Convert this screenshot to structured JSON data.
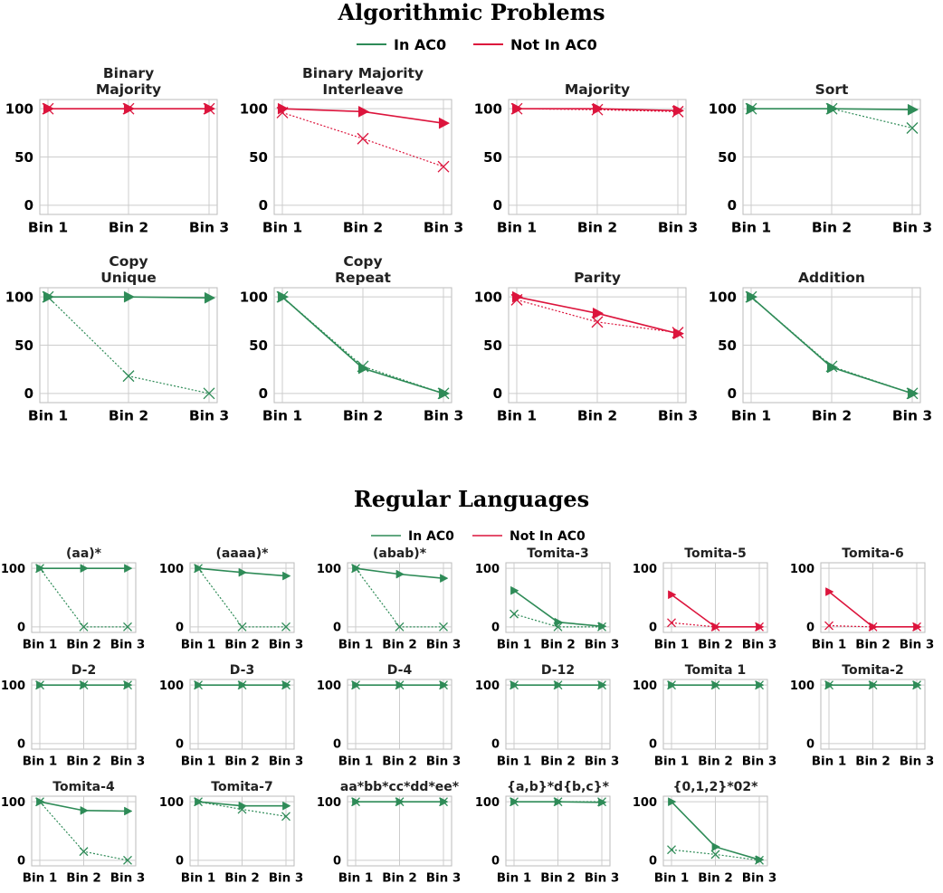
{
  "colors": {
    "in_ac0": "#2e8b57",
    "not_in_ac0": "#dc143c",
    "grid": "#cccccc",
    "axes": "#bbbbbb"
  },
  "sections": [
    {
      "title": "Algorithmic Problems",
      "legend": {
        "in_ac0": "In AC0",
        "not_in_ac0": "Not In AC0"
      },
      "charts": [
        {
          "title": [
            "Binary",
            "Majority"
          ],
          "category": "not_in_ac0",
          "solid": [
            100,
            100,
            100
          ],
          "dotted": [
            100,
            100,
            100
          ]
        },
        {
          "title": [
            "Binary Majority",
            "Interleave"
          ],
          "category": "not_in_ac0",
          "solid": [
            100,
            97,
            85
          ],
          "dotted": [
            96,
            69,
            40
          ]
        },
        {
          "title": [
            "Majority"
          ],
          "category": "not_in_ac0",
          "solid": [
            100,
            100,
            98
          ],
          "dotted": [
            100,
            99,
            97
          ]
        },
        {
          "title": [
            "Sort"
          ],
          "category": "in_ac0",
          "solid": [
            100,
            100,
            99
          ],
          "dotted": [
            100,
            100,
            80
          ]
        },
        {
          "title": [
            "Copy",
            "Unique"
          ],
          "category": "in_ac0",
          "solid": [
            100,
            100,
            99
          ],
          "dotted": [
            100,
            18,
            0
          ]
        },
        {
          "title": [
            "Copy",
            "Repeat"
          ],
          "category": "in_ac0",
          "solid": [
            100,
            26,
            0
          ],
          "dotted": [
            100,
            28,
            0
          ]
        },
        {
          "title": [
            "Parity"
          ],
          "category": "not_in_ac0",
          "solid": [
            100,
            83,
            62
          ],
          "dotted": [
            97,
            74,
            63
          ]
        },
        {
          "title": [
            "Addition"
          ],
          "category": "in_ac0",
          "solid": [
            100,
            27,
            0
          ],
          "dotted": [
            100,
            28,
            0
          ]
        }
      ]
    },
    {
      "title": "Regular Languages",
      "legend": {
        "in_ac0": "In AC0",
        "not_in_ac0": "Not In AC0"
      },
      "charts": [
        {
          "title": [
            "(aa)*"
          ],
          "category": "in_ac0",
          "solid": [
            100,
            100,
            100
          ],
          "dotted": [
            100,
            0,
            0
          ]
        },
        {
          "title": [
            "(aaaa)*"
          ],
          "category": "in_ac0",
          "solid": [
            100,
            93,
            87
          ],
          "dotted": [
            100,
            0,
            0
          ]
        },
        {
          "title": [
            "(abab)*"
          ],
          "category": "in_ac0",
          "solid": [
            100,
            90,
            83
          ],
          "dotted": [
            100,
            0,
            0
          ]
        },
        {
          "title": [
            "Tomita-3"
          ],
          "category": "in_ac0",
          "solid": [
            62,
            8,
            1
          ],
          "dotted": [
            22,
            0,
            0
          ]
        },
        {
          "title": [
            "Tomita-5"
          ],
          "category": "not_in_ac0",
          "solid": [
            55,
            0,
            0
          ],
          "dotted": [
            7,
            0,
            0
          ]
        },
        {
          "title": [
            "Tomita-6"
          ],
          "category": "not_in_ac0",
          "solid": [
            60,
            0,
            0
          ],
          "dotted": [
            2,
            0,
            0
          ]
        },
        {
          "title": [
            "D-2"
          ],
          "category": "in_ac0",
          "solid": [
            100,
            100,
            100
          ],
          "dotted": [
            100,
            100,
            100
          ]
        },
        {
          "title": [
            "D-3"
          ],
          "category": "in_ac0",
          "solid": [
            100,
            100,
            100
          ],
          "dotted": [
            100,
            100,
            100
          ]
        },
        {
          "title": [
            "D-4"
          ],
          "category": "in_ac0",
          "solid": [
            100,
            100,
            100
          ],
          "dotted": [
            100,
            100,
            100
          ]
        },
        {
          "title": [
            "D-12"
          ],
          "category": "in_ac0",
          "solid": [
            100,
            100,
            100
          ],
          "dotted": [
            100,
            100,
            100
          ]
        },
        {
          "title": [
            "Tomita 1"
          ],
          "category": "in_ac0",
          "solid": [
            100,
            100,
            100
          ],
          "dotted": [
            100,
            100,
            100
          ]
        },
        {
          "title": [
            "Tomita-2"
          ],
          "category": "in_ac0",
          "solid": [
            100,
            100,
            100
          ],
          "dotted": [
            100,
            100,
            100
          ]
        },
        {
          "title": [
            "Tomita-4"
          ],
          "category": "in_ac0",
          "solid": [
            100,
            85,
            84
          ],
          "dotted": [
            100,
            15,
            0
          ]
        },
        {
          "title": [
            "Tomita-7"
          ],
          "category": "in_ac0",
          "solid": [
            100,
            93,
            93
          ],
          "dotted": [
            100,
            87,
            75
          ]
        },
        {
          "title": [
            "aa*bb*cc*dd*ee*"
          ],
          "category": "in_ac0",
          "solid": [
            100,
            100,
            100
          ],
          "dotted": [
            100,
            100,
            100
          ]
        },
        {
          "title": [
            "{a,b}*d{b,c}*"
          ],
          "category": "in_ac0",
          "solid": [
            100,
            100,
            99
          ],
          "dotted": [
            100,
            100,
            100
          ]
        },
        {
          "title": [
            "{0,1,2}*02*"
          ],
          "category": "in_ac0",
          "solid": [
            100,
            23,
            1
          ],
          "dotted": [
            18,
            10,
            0
          ]
        }
      ]
    }
  ],
  "chart_data": {
    "type": "line",
    "categories": [
      "Bin 1",
      "Bin 2",
      "Bin 3"
    ],
    "ylim": [
      0,
      100
    ],
    "yticks_algorithmic": [
      0,
      50,
      100
    ],
    "yticks_regular": [
      0,
      100
    ],
    "grid": true,
    "legend_placement": "top-center",
    "series_styles": {
      "solid": "triangle-right markers",
      "dotted": "x markers"
    }
  }
}
